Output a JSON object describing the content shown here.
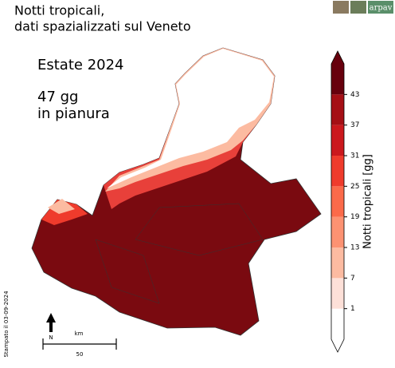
{
  "header": {
    "title": [
      "Notti tropicali,",
      "dati spazializzati sul Veneto"
    ],
    "logo": "arpav"
  },
  "annotation": {
    "season": "Estate 2024",
    "plain": [
      "47 gg",
      "in pianura"
    ]
  },
  "colorbar": {
    "label": "Notti tropicali [gg]",
    "lim": [
      -5,
      49
    ],
    "ticks": [
      1,
      7,
      13,
      19,
      25,
      31,
      37,
      43
    ],
    "colors": [
      "#ffffff",
      "#fde0d8",
      "#fcbba1",
      "#fc9272",
      "#fb6a4a",
      "#ef3b2c",
      "#cb181d",
      "#a50f15",
      "#67000d"
    ]
  },
  "scale": {
    "north": "N",
    "unit": "km",
    "length": "50"
  },
  "footer": {
    "printed": "Stampato il 03-09-2024"
  }
}
